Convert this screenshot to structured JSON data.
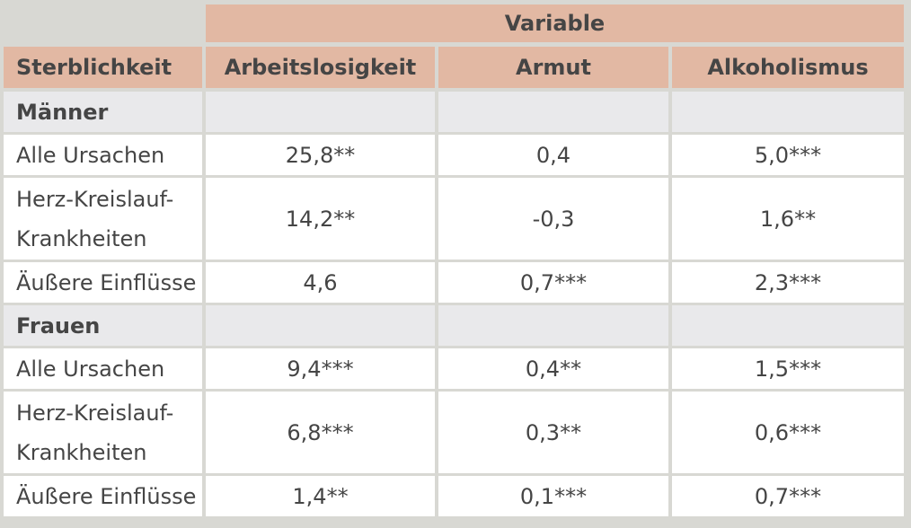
{
  "header": {
    "group_label": "Variable",
    "row_label": "Sterblichkeit",
    "columns": [
      "Arbeitslosigkeit",
      "Armut",
      "Alkoholismus"
    ]
  },
  "sections": [
    {
      "title": "Männer",
      "rows": [
        {
          "label": "Alle Ursachen",
          "values": [
            "25,8**",
            "0,4",
            "5,0***"
          ]
        },
        {
          "label": "Herz-Kreislauf-Krankheiten",
          "values": [
            "14,2**",
            "-0,3",
            "1,6**"
          ]
        },
        {
          "label": "Äußere Einflüsse",
          "values": [
            "4,6",
            "0,7***",
            "2,3***"
          ]
        }
      ]
    },
    {
      "title": "Frauen",
      "rows": [
        {
          "label": "Alle Ursachen",
          "values": [
            "9,4***",
            "0,4**",
            "1,5***"
          ]
        },
        {
          "label": "Herz-Kreislauf-Krankheiten",
          "values": [
            "6,8***",
            "0,3**",
            "0,6***"
          ]
        },
        {
          "label": "Äußere Einflüsse",
          "values": [
            "1,4**",
            "0,1***",
            "0,7***"
          ]
        }
      ]
    }
  ]
}
